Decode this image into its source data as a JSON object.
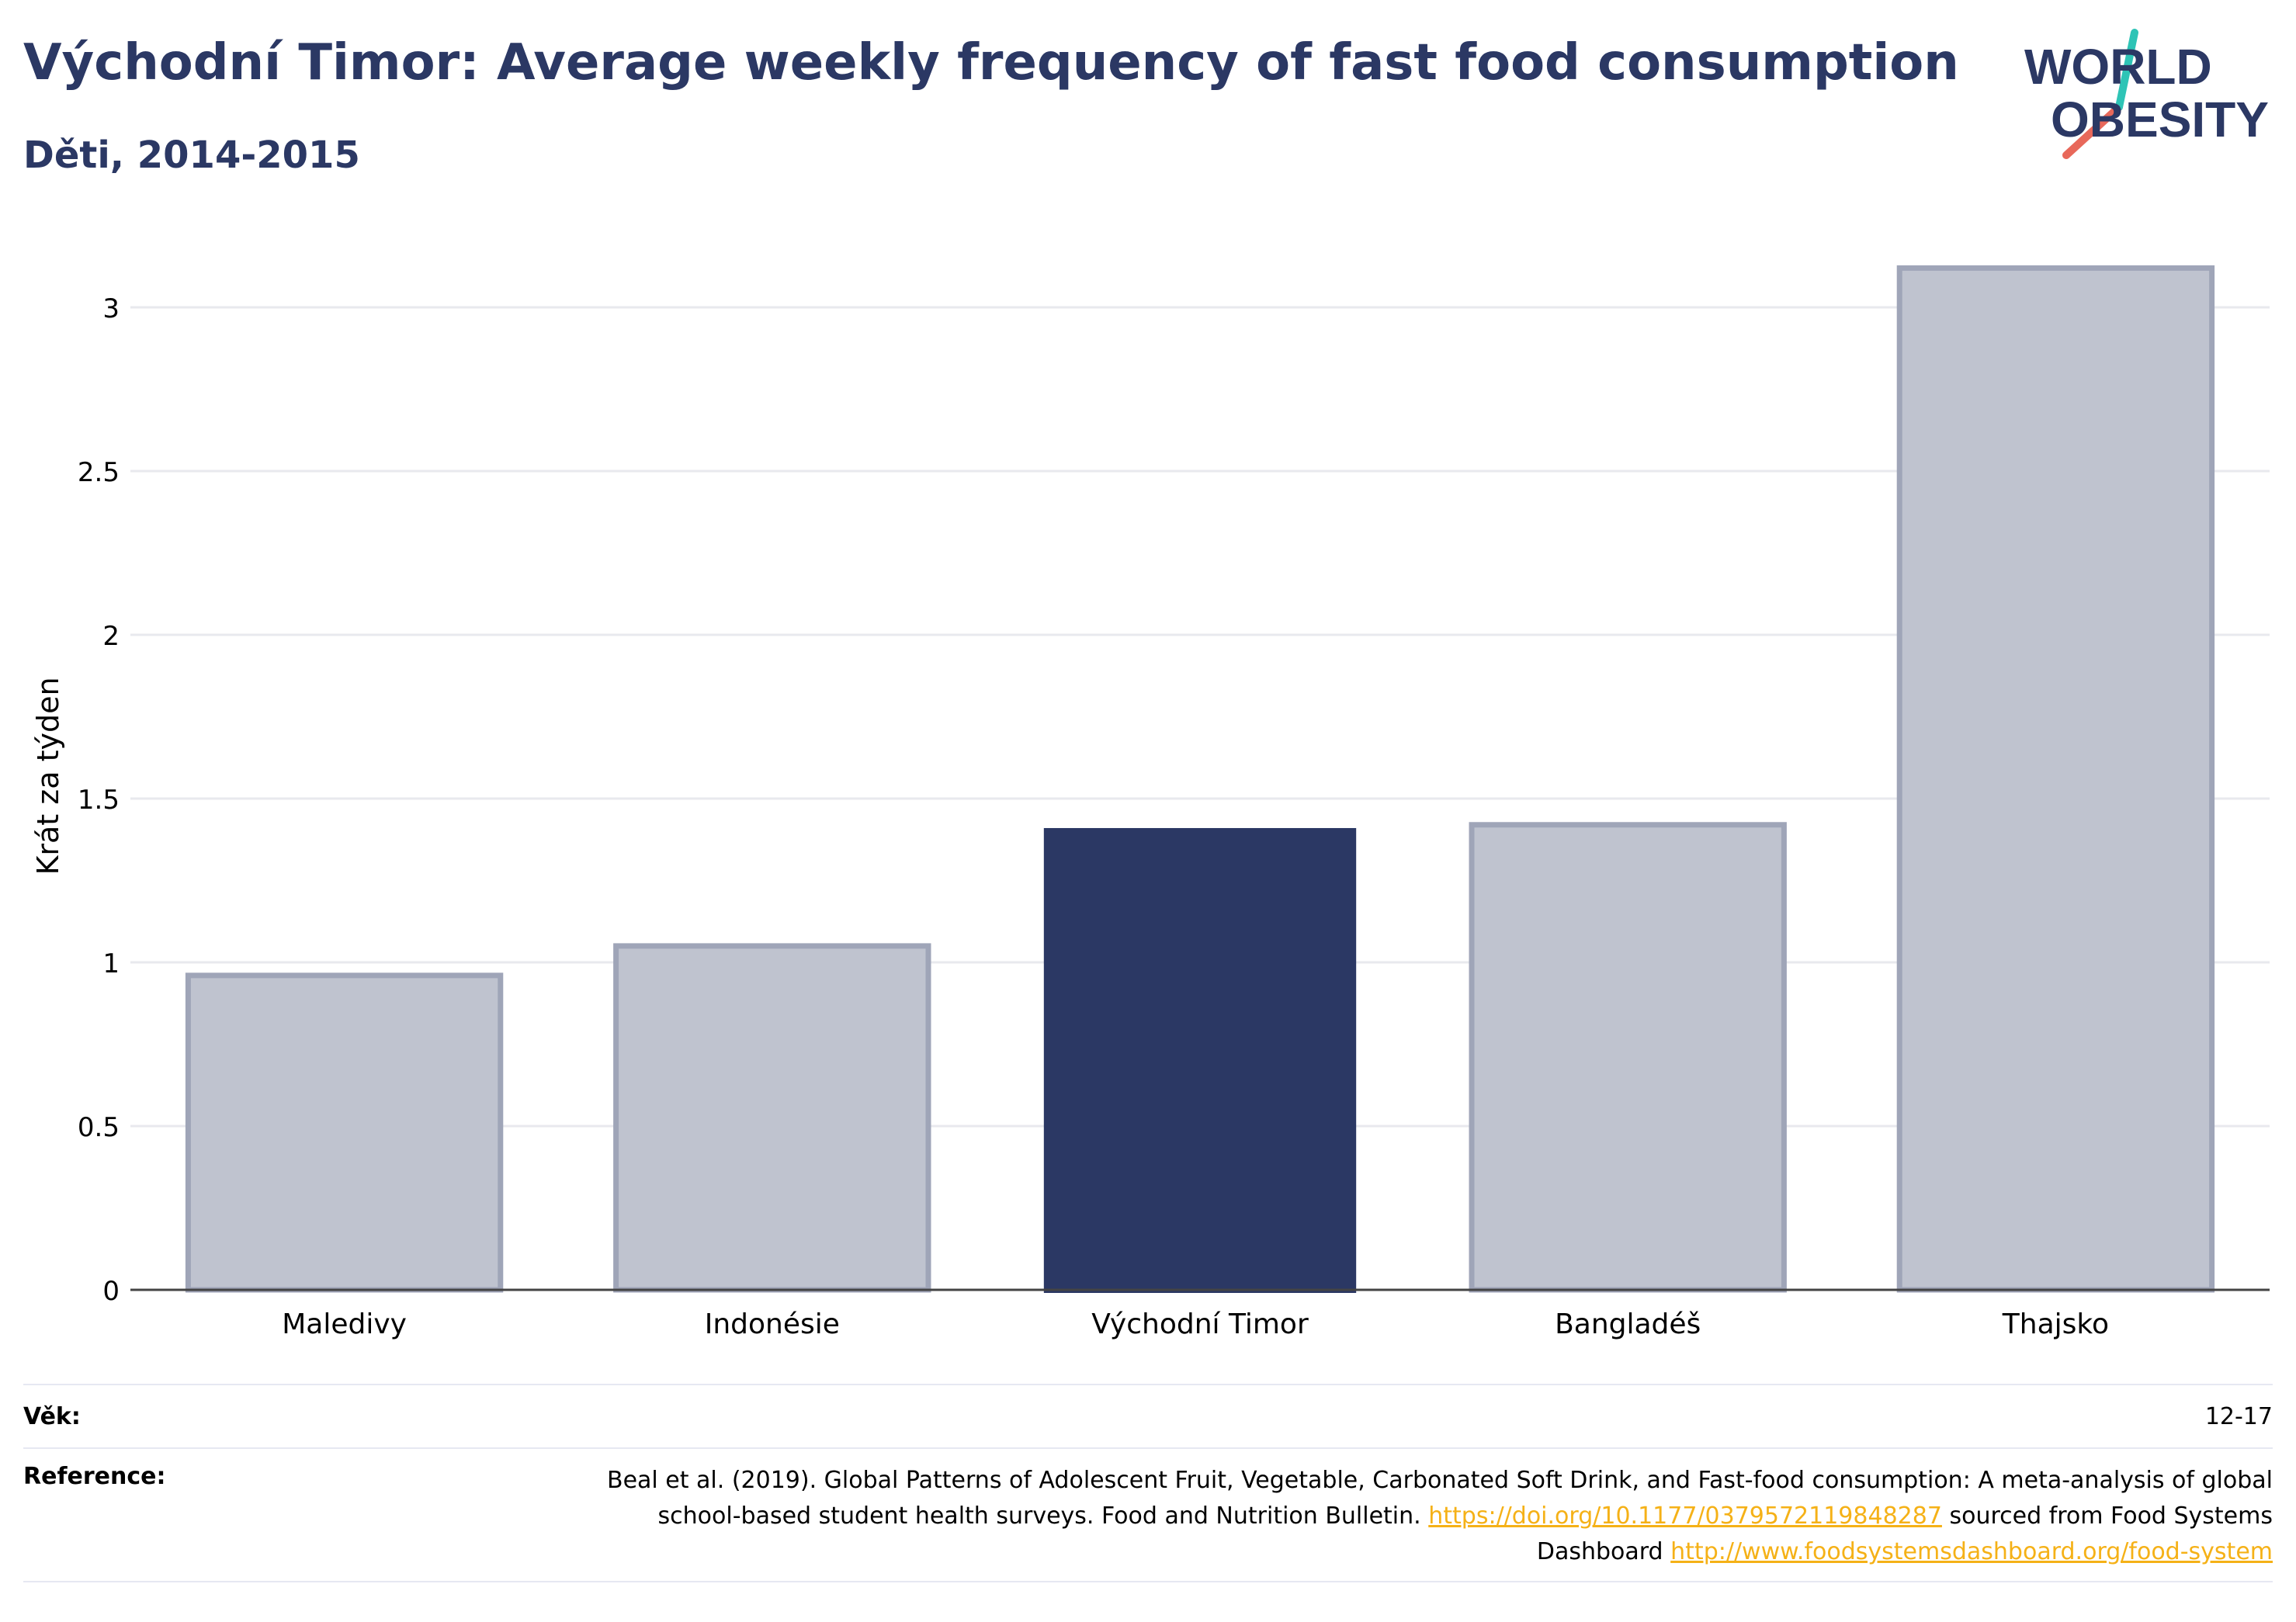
{
  "header": {
    "title": "Východní Timor: Average weekly frequency of fast food consumption",
    "subtitle": "Děti, 2014-2015"
  },
  "logo": {
    "line1": "WORLD",
    "line2": "OBESITY",
    "colors": {
      "text": "#2b3864",
      "slash_teal": "#2ec4b6",
      "slash_coral": "#e8685a"
    }
  },
  "chart_data": {
    "type": "bar",
    "categories": [
      "Maledivy",
      "Indonésie",
      "Východní Timor",
      "Bangladéš",
      "Thajsko"
    ],
    "values": [
      0.96,
      1.05,
      1.41,
      1.42,
      3.12
    ],
    "highlight": "Východní Timor",
    "ylabel": "Krát za týden",
    "ylim": [
      0,
      3.3
    ],
    "yticks": [
      0,
      0.5,
      1,
      1.5,
      2,
      2.5,
      3
    ],
    "ytick_labels": [
      "0",
      "0.5",
      "1",
      "1.5",
      "2",
      "2.5",
      "3"
    ],
    "grid": true,
    "colors": {
      "highlight": "#2b3864",
      "other_fill": "#bfc3cf",
      "other_stroke": "#9fa5b8",
      "grid": "#e8e9ee",
      "axis": "#444444"
    }
  },
  "footer": {
    "age_label": "Věk:",
    "age_value": "12-17",
    "reference_label": "Reference:",
    "reference_text_1": "Beal et al. (2019). Global Patterns of Adolescent Fruit, Vegetable, Carbonated Soft Drink, and Fast-food consumption: A meta-analysis of global school-based student health surveys. Food and Nutrition Bulletin.",
    "reference_link_1": "https://doi.org/10.1177/0379572119848287",
    "reference_text_2": "sourced from Food Systems Dashboard",
    "reference_link_2": "http://www.foodsystemsdashboard.org/food-system"
  }
}
